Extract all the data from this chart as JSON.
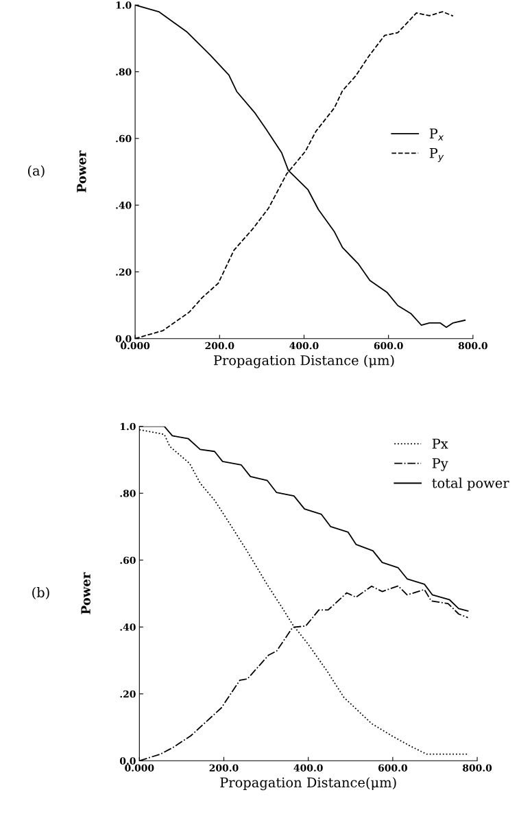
{
  "chart_data": [
    {
      "type": "line",
      "xlabel": "Propagation Distance (μm)",
      "ylabel": "Power",
      "annotations": [
        "(a)"
      ],
      "legend": "right",
      "xlim": [
        0,
        800
      ],
      "ylim": [
        0,
        1
      ],
      "xticks": [
        {
          "value": 0,
          "label": "0.000"
        },
        {
          "value": 200,
          "label": "200.0"
        },
        {
          "value": 400,
          "label": "400.0"
        },
        {
          "value": 600,
          "label": "600.0"
        },
        {
          "value": 800,
          "label": "800.0"
        }
      ],
      "yticks": [
        {
          "value": 0,
          "label": "0.0"
        },
        {
          "value": 0.2,
          "label": ".20"
        },
        {
          "value": 0.4,
          "label": ".40"
        },
        {
          "value": 0.6,
          "label": ".60"
        },
        {
          "value": 0.8,
          "label": ".80"
        },
        {
          "value": 1,
          "label": "1.0"
        }
      ],
      "series": [
        {
          "name": "P$_{x}$",
          "color": "#000000",
          "line_style": "solid",
          "x": [
            0,
            56,
            122,
            178,
            222,
            241,
            284,
            309,
            347,
            363,
            409,
            434,
            472,
            491,
            528,
            556,
            597,
            622,
            653,
            678,
            697,
            722,
            737,
            753,
            781
          ],
          "values": [
            1.0,
            0.98,
            0.92,
            0.85,
            0.79,
            0.74,
            0.676,
            0.63,
            0.557,
            0.504,
            0.447,
            0.387,
            0.32,
            0.273,
            0.225,
            0.174,
            0.138,
            0.099,
            0.075,
            0.04,
            0.047,
            0.047,
            0.034,
            0.047,
            0.055
          ]
        },
        {
          "name": "P$_{y}$",
          "color": "#000000",
          "line_style": "dashed",
          "x": [
            0,
            66,
            128,
            159,
            197,
            234,
            278,
            316,
            359,
            403,
            428,
            472,
            491,
            522,
            553,
            591,
            622,
            666,
            697,
            728,
            753
          ],
          "values": [
            0.0,
            0.024,
            0.079,
            0.123,
            0.166,
            0.265,
            0.328,
            0.391,
            0.494,
            0.561,
            0.621,
            0.692,
            0.743,
            0.787,
            0.846,
            0.909,
            0.917,
            0.976,
            0.968,
            0.98,
            0.967
          ]
        }
      ]
    },
    {
      "type": "line",
      "xlabel": "Propagation Distance(μm)",
      "ylabel": "Power",
      "annotations": [
        "(b)"
      ],
      "legend": "top right",
      "xlim": [
        0,
        800
      ],
      "ylim": [
        0,
        1
      ],
      "xticks": [
        {
          "value": 0,
          "label": "0.000"
        },
        {
          "value": 200,
          "label": "200.0"
        },
        {
          "value": 400,
          "label": "400.0"
        },
        {
          "value": 600,
          "label": "600.0"
        },
        {
          "value": 800,
          "label": "800.0"
        }
      ],
      "yticks": [
        {
          "value": 0,
          "label": "0.0"
        },
        {
          "value": 0.2,
          "label": ".20"
        },
        {
          "value": 0.4,
          "label": ".40"
        },
        {
          "value": 0.6,
          "label": ".60"
        },
        {
          "value": 0.8,
          "label": ".80"
        },
        {
          "value": 1,
          "label": "1.0"
        }
      ],
      "series": [
        {
          "name": "Px",
          "color": "#000000",
          "line_style": "dotted",
          "x": [
            0,
            59,
            72,
            119,
            144,
            178,
            213,
            256,
            303,
            338,
            363,
            400,
            444,
            484,
            550,
            600,
            640,
            680,
            780
          ],
          "values": [
            0.99,
            0.976,
            0.94,
            0.889,
            0.83,
            0.779,
            0.711,
            0.625,
            0.526,
            0.458,
            0.407,
            0.348,
            0.269,
            0.19,
            0.111,
            0.073,
            0.045,
            0.02,
            0.02
          ]
        },
        {
          "name": "Py",
          "color": "#000000",
          "line_style": "dashdot",
          "x": [
            0,
            50,
            80,
            122,
            194,
            238,
            256,
            306,
            325,
            363,
            394,
            425,
            447,
            491,
            513,
            550,
            575,
            613,
            634,
            675,
            691,
            731,
            756,
            778
          ],
          "values": [
            0.0,
            0.02,
            0.04,
            0.075,
            0.158,
            0.241,
            0.245,
            0.316,
            0.328,
            0.399,
            0.403,
            0.451,
            0.451,
            0.502,
            0.489,
            0.522,
            0.506,
            0.523,
            0.496,
            0.512,
            0.478,
            0.47,
            0.439,
            0.428
          ]
        },
        {
          "name": "total power",
          "color": "#000000",
          "line_style": "solid",
          "x": [
            0,
            59,
            78,
            116,
            144,
            178,
            197,
            241,
            263,
            303,
            325,
            366,
            391,
            431,
            453,
            494,
            513,
            553,
            575,
            613,
            634,
            675,
            694,
            734,
            756,
            778
          ],
          "values": [
            1.0,
            1.0,
            0.972,
            0.963,
            0.931,
            0.925,
            0.895,
            0.885,
            0.85,
            0.838,
            0.802,
            0.792,
            0.753,
            0.737,
            0.7,
            0.684,
            0.647,
            0.628,
            0.593,
            0.577,
            0.544,
            0.528,
            0.496,
            0.482,
            0.455,
            0.448
          ]
        }
      ]
    }
  ]
}
